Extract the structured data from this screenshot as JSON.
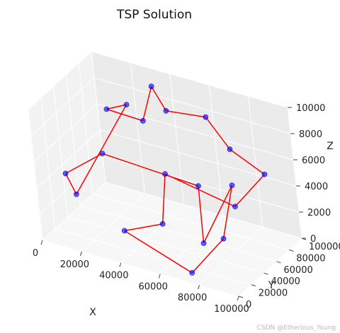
{
  "chart_data": {
    "type": "scatter",
    "title": "TSP Solution",
    "xlabel": "X",
    "ylabel": "Y",
    "zlabel": "Z",
    "xlim": [
      0,
      100000
    ],
    "ylim": [
      0,
      100000
    ],
    "zlim": [
      0,
      10000
    ],
    "x_ticks": [
      "0",
      "20000",
      "40000",
      "60000",
      "80000",
      "100000"
    ],
    "y_ticks": [
      "0",
      "20000",
      "40000",
      "60000",
      "80000",
      "100000"
    ],
    "z_ticks": [
      "0",
      "2000",
      "4000",
      "6000",
      "8000",
      "10000"
    ],
    "grid": true,
    "series": [
      {
        "role": "cities",
        "marker": "circle",
        "color": "#0000ff",
        "x": [
          50000,
          12000,
          88000,
          30000,
          70000,
          95000,
          5000,
          60000,
          40000,
          20000,
          80000,
          55000,
          35000,
          65000,
          90000,
          15000,
          45000,
          75000,
          25000,
          85000
        ],
        "y": [
          50000,
          80000,
          20000,
          60000,
          40000,
          70000,
          30000,
          90000,
          10000,
          45000,
          65000,
          25000,
          85000,
          55000,
          35000,
          15000,
          75000,
          5000,
          95000,
          50000
        ],
        "z": [
          5000,
          7000,
          3000,
          9000,
          1000,
          6000,
          4000,
          8000,
          2000,
          5500,
          7500,
          2500,
          9500,
          4500,
          6500,
          3500,
          8500,
          500,
          6000,
          4000
        ]
      },
      {
        "role": "tour",
        "marker": "line",
        "color": "#ff0000",
        "order": [
          0,
          11,
          8,
          17,
          2,
          14,
          4,
          13,
          9,
          6,
          15,
          3,
          1,
          18,
          12,
          16,
          7,
          10,
          5,
          19,
          0
        ]
      }
    ]
  },
  "watermark": "CSDN @Etherious_Young"
}
